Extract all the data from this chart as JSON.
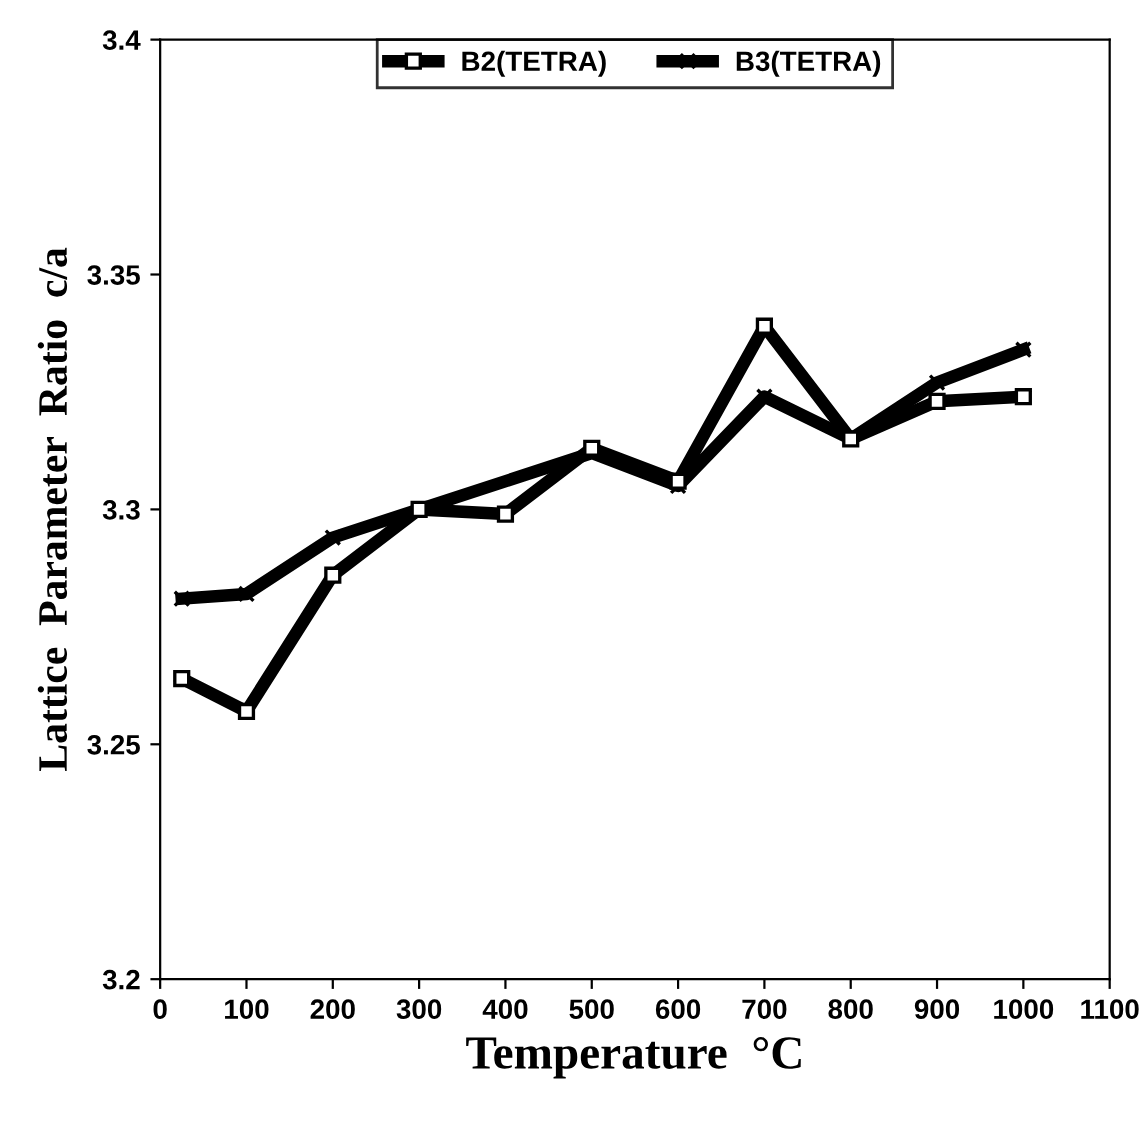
{
  "chart_data": {
    "type": "line",
    "xlabel": "Temperature  °C",
    "ylabel": "Lattice  Parameter  Ratio  c/a",
    "xlim": [
      0,
      1100
    ],
    "xticks": [
      0,
      100,
      200,
      300,
      400,
      500,
      600,
      700,
      800,
      900,
      1000,
      1100
    ],
    "ylim": [
      3.2,
      3.4
    ],
    "yticks": [
      3.2,
      3.25,
      3.3,
      3.35,
      3.4
    ],
    "grid": false,
    "legend": "top",
    "series": [
      {
        "name": "B2(TETRA)",
        "color": "#000000",
        "marker": "square",
        "x": [
          25,
          100,
          200,
          300,
          400,
          500,
          600,
          700,
          800,
          900,
          1000
        ],
        "values": [
          3.264,
          3.257,
          3.286,
          3.3,
          3.299,
          3.313,
          3.306,
          3.339,
          3.315,
          3.323,
          3.324
        ]
      },
      {
        "name": "B3(TETRA)",
        "color": "#000000",
        "marker": "cross",
        "x": [
          25,
          100,
          200,
          300,
          500,
          600,
          700,
          800,
          900,
          1000
        ],
        "values": [
          3.281,
          3.282,
          3.294,
          3.3,
          3.312,
          3.305,
          3.324,
          3.315,
          3.327,
          3.334
        ]
      }
    ]
  }
}
